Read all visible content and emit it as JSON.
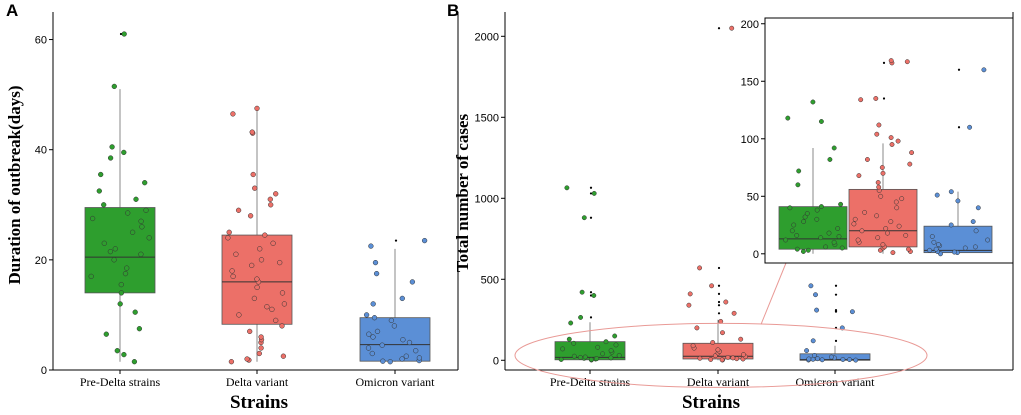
{
  "colors": {
    "pre_delta": "#2e9e2e",
    "delta": "#ec7068",
    "omicron": "#5b8fd6",
    "ellipse": "#e99a96"
  },
  "chart_data": [
    {
      "id": "A",
      "panel_label": "A",
      "type": "box",
      "xlabel": "Strains",
      "ylabel": "Duration of outbreak(days)",
      "categories": [
        "Pre-Delta strains",
        "Delta variant",
        "Omicron variant"
      ],
      "ylim": [
        0,
        65
      ],
      "yticks": [
        0,
        20,
        40,
        60
      ],
      "boxes": [
        {
          "q1": 14,
          "median": 20.5,
          "q3": 29.5,
          "whisker_low": 1.5,
          "whisker_high": 51
        },
        {
          "q1": 8.3,
          "median": 16,
          "q3": 24.5,
          "whisker_low": 1.5,
          "whisker_high": 47.3
        },
        {
          "q1": 1.6,
          "median": 4.6,
          "q3": 9.5,
          "whisker_low": 1.5,
          "whisker_high": 22
        }
      ],
      "points": [
        [
          1.5,
          2.8,
          3.5,
          6.5,
          7.5,
          10.5,
          12,
          14,
          15.5,
          17,
          17.5,
          18.5,
          20,
          21,
          21.5,
          22,
          23,
          24,
          25,
          26,
          27,
          27.5,
          28.5,
          29,
          30,
          31,
          32.5,
          34,
          35.5,
          38.5,
          39.5,
          40.5,
          51.5,
          61
        ],
        [
          1.5,
          1.8,
          2,
          2.5,
          3,
          4,
          5,
          5.5,
          6,
          7,
          8,
          9,
          10,
          11,
          11.5,
          12,
          13,
          14,
          15,
          16,
          16.5,
          17,
          18,
          19,
          19.5,
          20,
          21,
          22,
          23,
          24,
          24.5,
          25,
          28,
          29,
          30,
          31,
          32,
          33,
          35.5,
          43,
          43.2,
          46.5,
          47.5
        ],
        [
          1.5,
          1.6,
          1.7,
          2,
          2.2,
          2.5,
          3,
          3.5,
          4,
          4.5,
          5,
          5.5,
          6,
          6.5,
          7,
          8,
          9,
          9.5,
          10,
          12,
          13,
          16,
          17.5,
          19.5,
          22.5,
          23.5
        ]
      ],
      "outliers": [
        [
          61
        ],
        [],
        [
          23.5
        ]
      ]
    },
    {
      "id": "B",
      "panel_label": "B",
      "type": "box",
      "xlabel": "Strains",
      "ylabel": "Total number of cases",
      "categories": [
        "Pre-Delta strains",
        "Delta variant",
        "Omicron variant"
      ],
      "ylim": [
        -60,
        2150
      ],
      "yticks": [
        0,
        500,
        1000,
        1500,
        2000
      ],
      "boxes": [
        {
          "q1": 3,
          "median": 18,
          "q3": 115,
          "whisker_low": 0,
          "whisker_high": 235
        },
        {
          "q1": 8,
          "median": 25,
          "q3": 105,
          "whisker_low": 0,
          "whisker_high": 250
        },
        {
          "q1": 0,
          "median": 4,
          "q3": 40,
          "whisker_low": 0,
          "whisker_high": 90
        }
      ],
      "points": [
        [
          2,
          4,
          5,
          8,
          10,
          12,
          15,
          18,
          20,
          25,
          30,
          40,
          50,
          60,
          70,
          80,
          95,
          105,
          115,
          130,
          150,
          230,
          265,
          400,
          420,
          880,
          1030,
          1065
        ],
        [
          2,
          3,
          5,
          8,
          10,
          12,
          15,
          18,
          22,
          28,
          35,
          45,
          55,
          65,
          75,
          90,
          110,
          130,
          170,
          200,
          240,
          290,
          340,
          360,
          410,
          460,
          570,
          2050
        ],
        [
          1,
          2,
          3,
          4,
          5,
          6,
          8,
          10,
          15,
          20,
          30,
          60,
          120,
          200,
          300,
          310,
          405,
          460
        ]
      ],
      "outliers": [
        [
          265,
          400,
          420,
          880,
          1030,
          1065
        ],
        [
          290,
          340,
          360,
          410,
          460,
          570,
          2050
        ],
        [
          120,
          200,
          300,
          310,
          405,
          460
        ]
      ]
    },
    {
      "id": "B-inset",
      "type": "box",
      "categories": [
        "Pre-Delta strains",
        "Delta variant",
        "Omicron variant"
      ],
      "ylim": [
        -8,
        205
      ],
      "yticks": [
        0,
        50,
        100,
        150,
        200
      ],
      "boxes": [
        {
          "q1": 4,
          "median": 13,
          "q3": 41,
          "whisker_low": 0,
          "whisker_high": 92
        },
        {
          "q1": 6,
          "median": 20,
          "q3": 56,
          "whisker_low": 0,
          "whisker_high": 96
        },
        {
          "q1": 1,
          "median": 3,
          "q3": 24,
          "whisker_low": 0,
          "whisker_high": 54
        }
      ],
      "points": [
        [
          2,
          3,
          4,
          5,
          6,
          8,
          10,
          12,
          14,
          15,
          16,
          18,
          20,
          22,
          25,
          28,
          30,
          32,
          35,
          38,
          40,
          41,
          43,
          60,
          72,
          82,
          92,
          115,
          118,
          132
        ],
        [
          1,
          2,
          3,
          4,
          5,
          6,
          8,
          10,
          12,
          14,
          16,
          18,
          20,
          22,
          24,
          26,
          28,
          30,
          33,
          36,
          40,
          45,
          48,
          50,
          55,
          58,
          62,
          68,
          70,
          75,
          78,
          82,
          88,
          95,
          98,
          101,
          104,
          112,
          134,
          135,
          166,
          167,
          168
        ],
        [
          0,
          1,
          1.5,
          2,
          3,
          4,
          5,
          6,
          7,
          8,
          10,
          12,
          15,
          20,
          25,
          28,
          40,
          46,
          51,
          54,
          110,
          160
        ]
      ],
      "outliers": [
        [
          132
        ],
        [
          135,
          166
        ],
        [
          110,
          160
        ]
      ]
    }
  ]
}
